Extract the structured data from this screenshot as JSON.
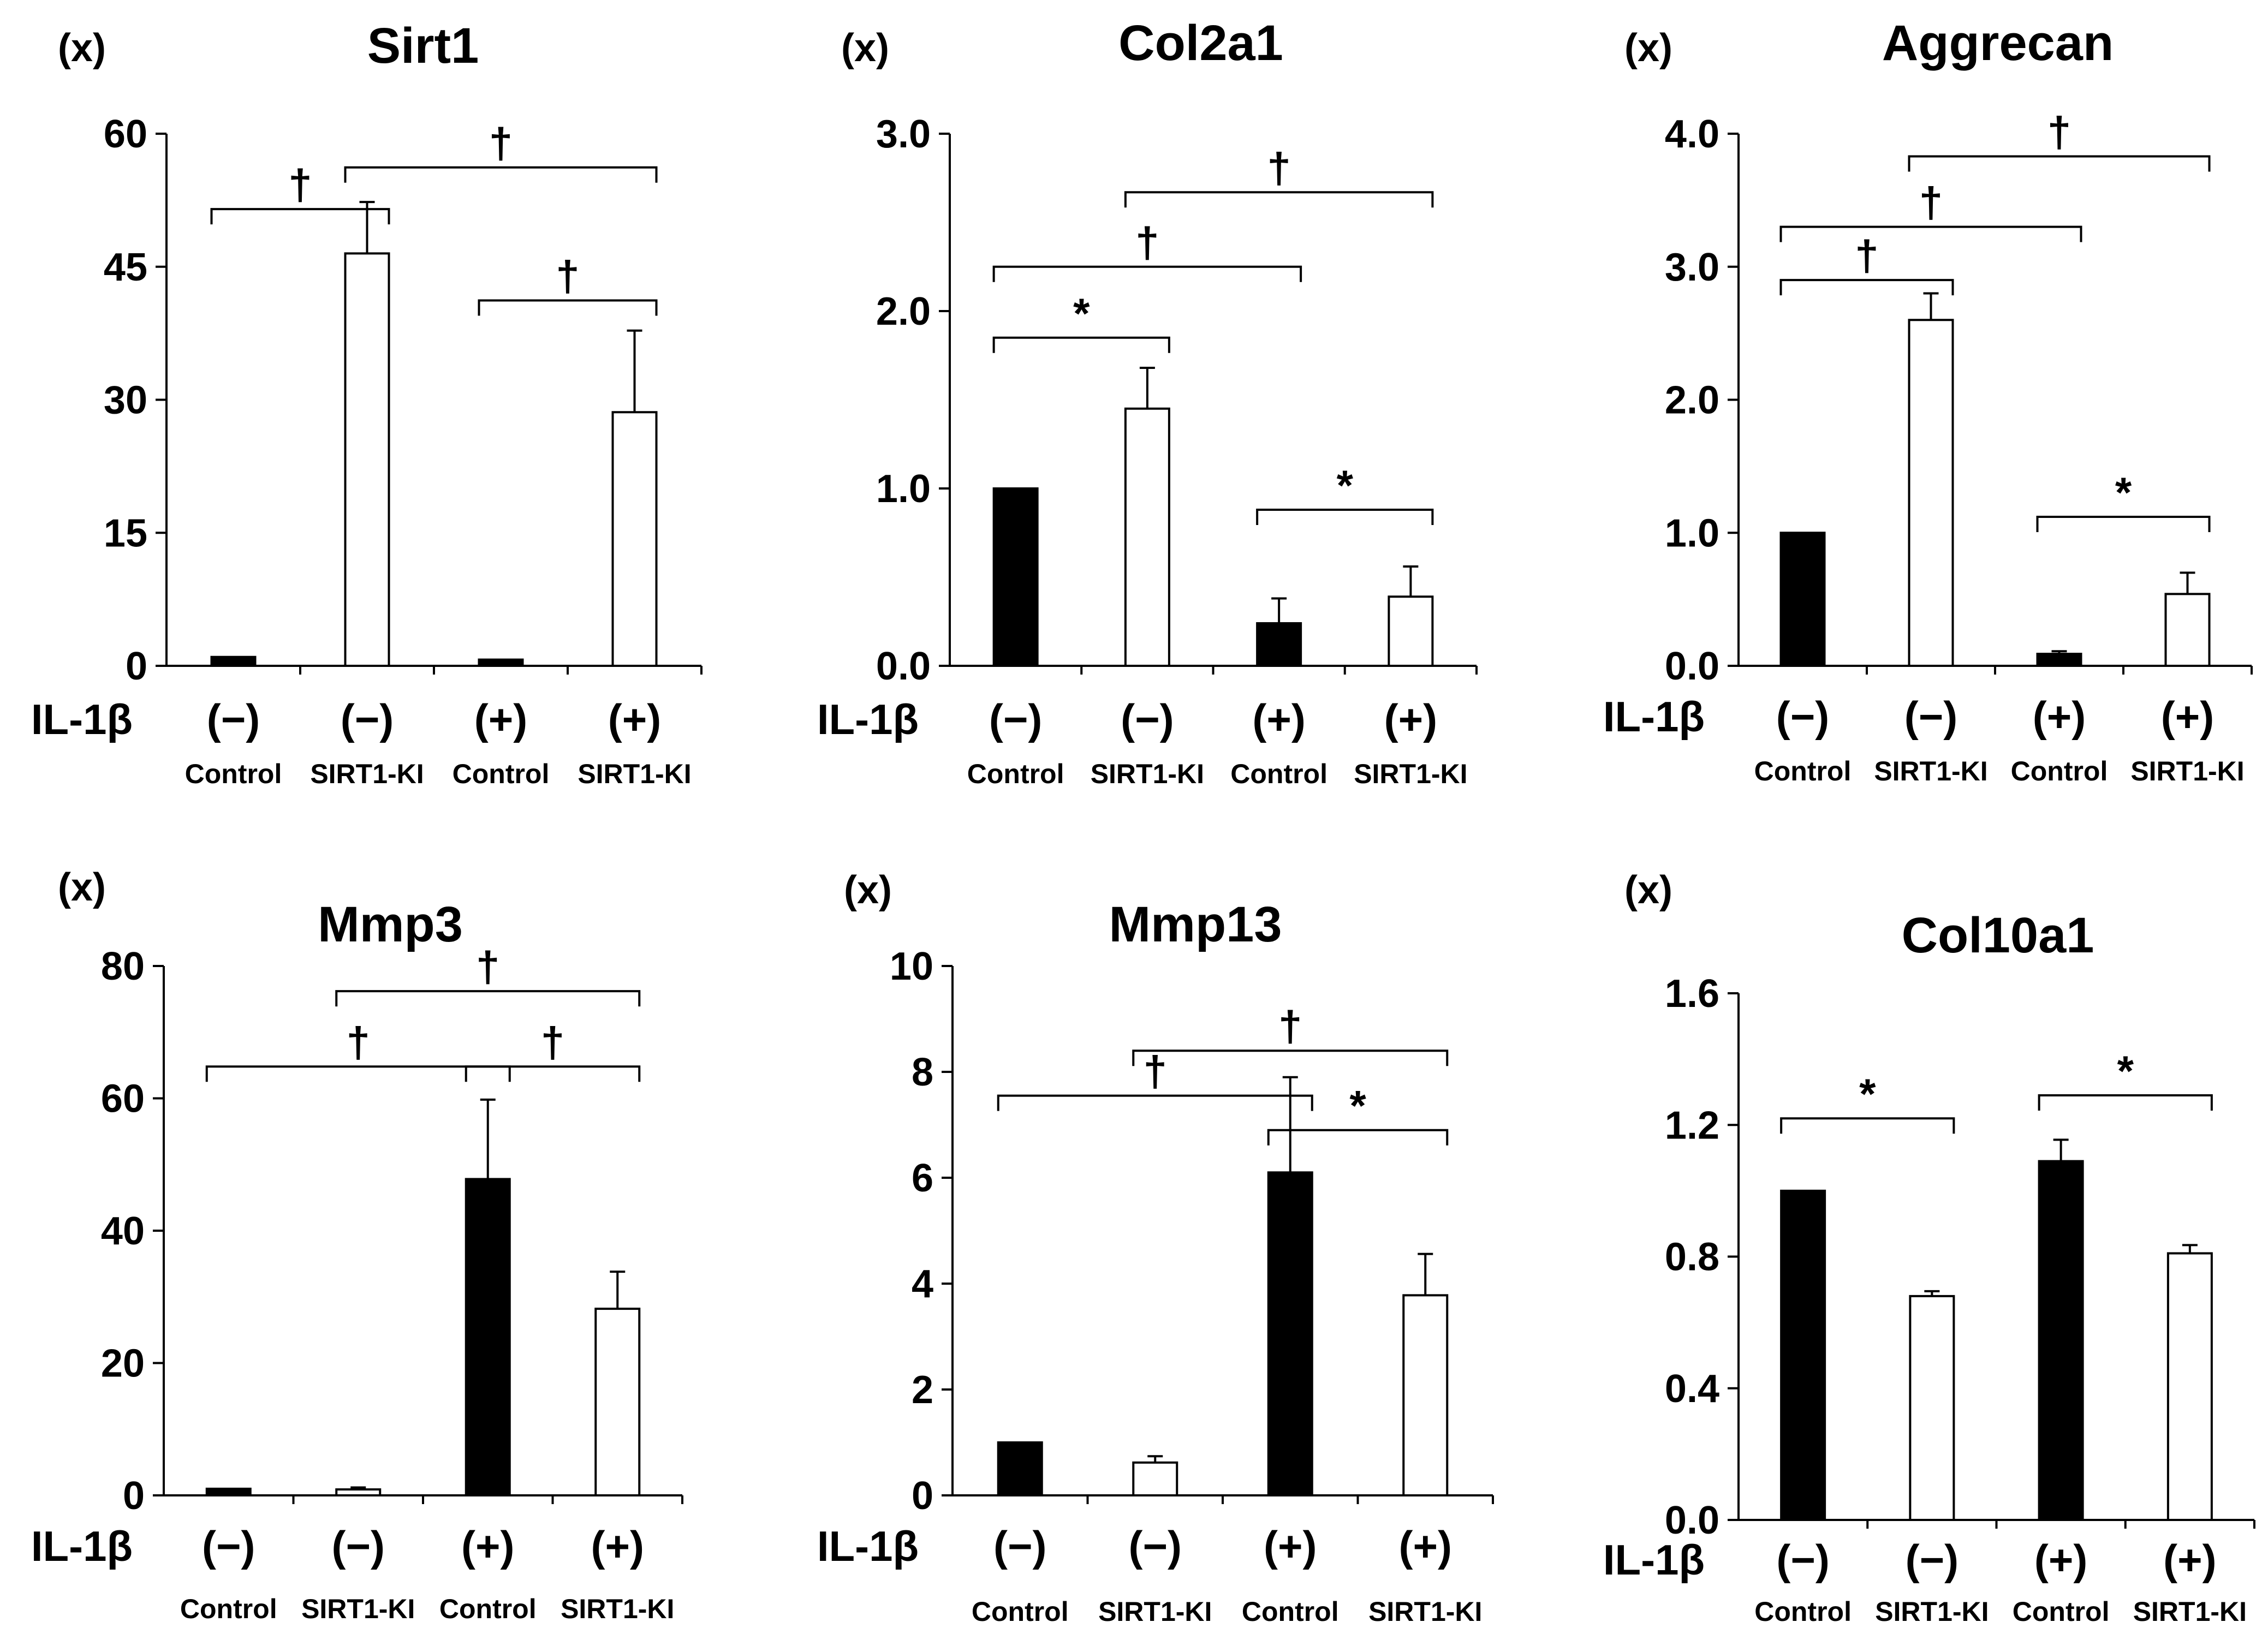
{
  "figure": {
    "background": "#ffffff",
    "bar_colors": {
      "Control": "#000000",
      "SIRT1-KI": "#ffffff"
    }
  },
  "chart_data": [
    {
      "type": "bar",
      "title": "Sirt1",
      "unit_label": "(x)",
      "x_row_label": "IL-1β",
      "categories": [
        "Control",
        "SIRT1-KI",
        "Control",
        "SIRT1-KI"
      ],
      "treatment": [
        "(−)",
        "(−)",
        "(+)",
        "(+)"
      ],
      "values": [
        1.0,
        46.5,
        0.7,
        28.6
      ],
      "errors": [
        0,
        5.8,
        0,
        9.2
      ],
      "yticks": [
        "0",
        "15",
        "30",
        "45",
        "60"
      ],
      "ylim": [
        0,
        60
      ],
      "significance": [
        {
          "from": 0,
          "to": 1,
          "symbol": "†",
          "y": 51.5
        },
        {
          "from": 1,
          "to": 3,
          "symbol": "†",
          "y": 56.2
        },
        {
          "from": 2,
          "to": 3,
          "symbol": "†",
          "y": 41.2
        }
      ]
    },
    {
      "type": "bar",
      "title": "Col2a1",
      "unit_label": "(x)",
      "x_row_label": "IL-1β",
      "categories": [
        "Control",
        "SIRT1-KI",
        "Control",
        "SIRT1-KI"
      ],
      "treatment": [
        "(−)",
        "(−)",
        "(+)",
        "(+)"
      ],
      "values": [
        1.0,
        1.45,
        0.24,
        0.39
      ],
      "errors": [
        0,
        0.23,
        0.14,
        0.17
      ],
      "yticks": [
        "0.0",
        "1.0",
        "2.0",
        "3.0"
      ],
      "ylim": [
        0,
        3.0
      ],
      "significance": [
        {
          "from": 0,
          "to": 1,
          "symbol": "*",
          "y": 1.85
        },
        {
          "from": 0,
          "to": 2,
          "symbol": "†",
          "y": 2.25
        },
        {
          "from": 1,
          "to": 3,
          "symbol": "†",
          "y": 2.67
        },
        {
          "from": 2,
          "to": 3,
          "symbol": "*",
          "y": 0.88
        }
      ]
    },
    {
      "type": "bar",
      "title": "Aggrecan",
      "unit_label": "(x)",
      "x_row_label": "IL-1β",
      "categories": [
        "Control",
        "SIRT1-KI",
        "Control",
        "SIRT1-KI"
      ],
      "treatment": [
        "(−)",
        "(−)",
        "(+)",
        "(+)"
      ],
      "values": [
        1.0,
        2.6,
        0.09,
        0.54
      ],
      "errors": [
        0,
        0.2,
        0.02,
        0.16
      ],
      "yticks": [
        "0.0",
        "1.0",
        "2.0",
        "3.0",
        "4.0"
      ],
      "ylim": [
        0,
        4.0
      ],
      "significance": [
        {
          "from": 0,
          "to": 1,
          "symbol": "†",
          "y": 2.9
        },
        {
          "from": 0,
          "to": 2,
          "symbol": "†",
          "y": 3.3
        },
        {
          "from": 1,
          "to": 3,
          "symbol": "†",
          "y": 3.83
        },
        {
          "from": 2,
          "to": 3,
          "symbol": "*",
          "y": 1.12
        }
      ]
    },
    {
      "type": "bar",
      "title": "Mmp3",
      "unit_label": "(x)",
      "x_row_label": "IL-1β",
      "categories": [
        "Control",
        "SIRT1-KI",
        "Control",
        "SIRT1-KI"
      ],
      "treatment": [
        "(−)",
        "(−)",
        "(+)",
        "(+)"
      ],
      "values": [
        1.0,
        0.9,
        47.8,
        28.2
      ],
      "errors": [
        0,
        0.3,
        12.0,
        5.6
      ],
      "yticks": [
        "0",
        "20",
        "40",
        "60",
        "80"
      ],
      "ylim": [
        0,
        80
      ],
      "significance": [
        {
          "from": 0,
          "to": 2,
          "symbol": "†",
          "y": 64.8
        },
        {
          "from": 1,
          "to": 3,
          "symbol": "†",
          "y": 76.2
        },
        {
          "from": 2,
          "to": 3,
          "symbol": "†",
          "y": 64.8
        }
      ]
    },
    {
      "type": "bar",
      "title": "Mmp13",
      "unit_label": "(x)",
      "x_row_label": "IL-1β",
      "categories": [
        "Control",
        "SIRT1-KI",
        "Control",
        "SIRT1-KI"
      ],
      "treatment": [
        "(−)",
        "(−)",
        "(+)",
        "(+)"
      ],
      "values": [
        1.0,
        0.62,
        6.1,
        3.78
      ],
      "errors": [
        0,
        0.12,
        1.8,
        0.78
      ],
      "yticks": [
        "0",
        "2",
        "4",
        "6",
        "8",
        "10"
      ],
      "ylim": [
        0,
        10
      ],
      "significance": [
        {
          "from": 0,
          "to": 2,
          "symbol": "†",
          "y": 7.55
        },
        {
          "from": 1,
          "to": 3,
          "symbol": "†",
          "y": 8.4
        },
        {
          "from": 2,
          "to": 3,
          "symbol": "*",
          "y": 6.9
        }
      ]
    },
    {
      "type": "bar",
      "title": "Col10a1",
      "unit_label": "(x)",
      "x_row_label": "IL-1β",
      "categories": [
        "Control",
        "SIRT1-KI",
        "Control",
        "SIRT1-KI"
      ],
      "treatment": [
        "(−)",
        "(−)",
        "(+)",
        "(+)"
      ],
      "values": [
        1.0,
        0.68,
        1.09,
        0.81
      ],
      "errors": [
        0,
        0.015,
        0.065,
        0.025
      ],
      "yticks": [
        "0.0",
        "0.4",
        "0.8",
        "1.2",
        "1.6"
      ],
      "ylim": [
        0,
        1.6
      ],
      "significance": [
        {
          "from": 0,
          "to": 1,
          "symbol": "*",
          "y": 1.22
        },
        {
          "from": 2,
          "to": 3,
          "symbol": "*",
          "y": 1.29
        }
      ]
    }
  ]
}
